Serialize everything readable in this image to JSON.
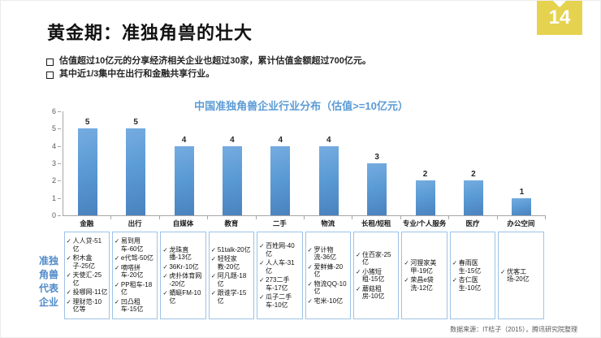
{
  "page": {
    "number": "14",
    "title": "黄金期：准独角兽的壮大",
    "bullets": [
      "估值超过10亿元的分享经济相关企业也超过30家，累计估值金额超过700亿元。",
      "其中近1/3集中在出行和金融共享行业。"
    ],
    "source": "数据来源：IT桔子（2015），腾讯研究院整理"
  },
  "chart_data": {
    "type": "bar",
    "title": "中国准独角兽企业行业分布（估值>=10亿元）",
    "categories": [
      "金融",
      "出行",
      "自媒体",
      "教育",
      "二手",
      "物流",
      "长租/短租",
      "专业/个人服务",
      "医疗",
      "办公空间"
    ],
    "values": [
      5,
      5,
      4,
      4,
      4,
      4,
      3,
      2,
      2,
      1
    ],
    "xlabel": "",
    "ylabel": "",
    "ylim": [
      0,
      6
    ],
    "yticks": [
      0,
      1,
      2,
      3,
      4,
      5,
      6
    ],
    "grid": false,
    "legend": false,
    "data_labels": true,
    "bar_color": "#5B9BD5"
  },
  "side_label": {
    "text": "准独角兽代表企业",
    "lines_text": "准独\n角兽\n代表\n企业"
  },
  "company_boxes": [
    {
      "category": "金融",
      "items": [
        "人人贷-51亿",
        "积木盒子-25亿",
        "天使汇-25亿",
        "投哪网-11亿",
        "理财范-10亿等"
      ]
    },
    {
      "category": "出行",
      "items": [
        "易到用车-60亿",
        "e代驾-50亿",
        "嘀嗒拼车-20亿",
        "PP租车-18亿",
        "凹凸租车-15亿"
      ]
    },
    {
      "category": "自媒体",
      "items": [
        "龙珠直播-13亿",
        "36Kr-10亿",
        "虎扑体育网 -20亿",
        "蜻蜓FM-10亿"
      ]
    },
    {
      "category": "教育",
      "items": [
        "51talk-20亿",
        "轻轻家教-20亿",
        "阿凡题-18亿",
        "跟谁学-15亿"
      ]
    },
    {
      "category": "二手",
      "items": [
        "百姓网-40亿",
        "人人车-31亿",
        "273二手车-17亿",
        "瓜子二手车-10亿"
      ]
    },
    {
      "category": "物流",
      "items": [
        "罗计物流-36亿",
        "爱鲜蜂-20亿",
        "物流QQ-10 亿",
        "宅米-10亿"
      ]
    },
    {
      "category": "长租/短租",
      "items": [
        "住百家-25亿",
        "小猪短租-15亿",
        "蘑菇租房-10亿"
      ]
    },
    {
      "category": "专业/个人服务",
      "items": [
        "河狸家美甲-19亿",
        "荣昌e袋洗-12亿"
      ]
    },
    {
      "category": "医疗",
      "items": [
        "春雨医生-15亿",
        "杏仁医生-10亿"
      ]
    },
    {
      "category": "办公空间",
      "items": [
        "优客工场-20亿"
      ]
    }
  ],
  "colors": {
    "accent_blue": "#5B9BD5",
    "box_border_blue": "#9DC3E6",
    "page_tab_yellow": "#E5D34F",
    "axis_gray": "#A6A6A6"
  }
}
